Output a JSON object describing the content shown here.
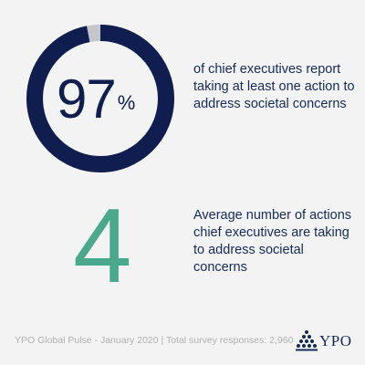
{
  "chart_data": {
    "type": "pie",
    "values": [
      97,
      3
    ],
    "colors": [
      "#0f1e4f",
      "#c4c6cb"
    ]
  },
  "stat1": {
    "value": "97",
    "unit": "%",
    "text": "of chief executives report taking at least one action to address societal concerns"
  },
  "stat2": {
    "value": "4",
    "text": "Average number of actions chief executives are taking to address societal concerns"
  },
  "footer": {
    "source": "YPO Global Pulse - January 2020 | Total survey responses: 2,960"
  },
  "logo": {
    "text": "YPO",
    "icon": "ypo-pyramid-icon",
    "color": "#142a5c"
  }
}
